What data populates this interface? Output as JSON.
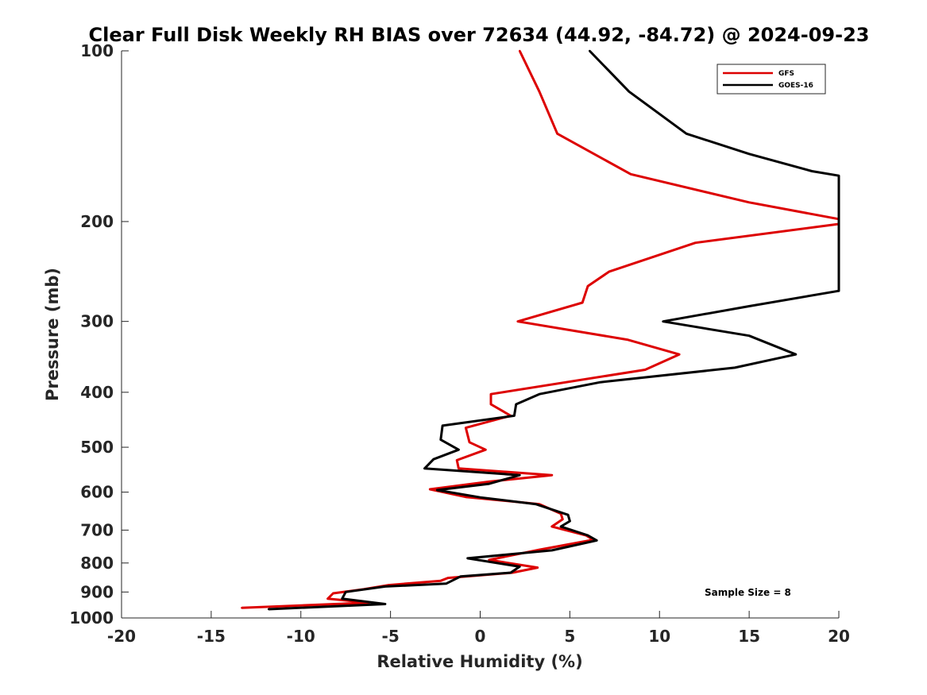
{
  "chart_data": {
    "type": "line",
    "title": "Clear Full Disk Weekly RH BIAS over 72634 (44.92, -84.72) @ 2024-09-23",
    "xlabel": "Relative Humidity (%)",
    "ylabel": "Pressure (mb)",
    "xlim": [
      -20,
      20
    ],
    "ylim": [
      100,
      1000
    ],
    "yscale": "log",
    "x_ticks": [
      -20,
      -15,
      -10,
      -5,
      0,
      5,
      10,
      15,
      20
    ],
    "y_ticks": [
      100,
      200,
      300,
      400,
      500,
      600,
      700,
      800,
      900,
      1000
    ],
    "legend_position": "top-right",
    "annotation": "Sample Size = 8",
    "series": [
      {
        "name": "GFS",
        "color": "#dd0000",
        "points": [
          [
            2.2,
            100
          ],
          [
            3.3,
            118
          ],
          [
            4.3,
            140
          ],
          [
            8.4,
            165
          ],
          [
            15,
            185
          ],
          [
            20,
            198
          ],
          [
            20,
            202
          ],
          [
            12,
            218
          ],
          [
            7.2,
            245
          ],
          [
            6,
            260
          ],
          [
            5.7,
            278
          ],
          [
            2.1,
            300
          ],
          [
            8.2,
            323
          ],
          [
            11.1,
            343
          ],
          [
            9.2,
            365
          ],
          [
            0.6,
            403
          ],
          [
            0.6,
            420
          ],
          [
            1.7,
            440
          ],
          [
            -0.8,
            462
          ],
          [
            -0.6,
            490
          ],
          [
            0.3,
            505
          ],
          [
            -1.3,
            527
          ],
          [
            -1.2,
            545
          ],
          [
            4,
            560
          ],
          [
            0.5,
            575
          ],
          [
            -2.8,
            593
          ],
          [
            -0.8,
            612
          ],
          [
            3.3,
            630
          ],
          [
            4.5,
            655
          ],
          [
            4.6,
            670
          ],
          [
            4,
            690
          ],
          [
            5.9,
            715
          ],
          [
            6.3,
            728
          ],
          [
            3.3,
            758
          ],
          [
            0.5,
            790
          ],
          [
            3.2,
            815
          ],
          [
            1.8,
            832
          ],
          [
            -1.8,
            850
          ],
          [
            -2.2,
            860
          ],
          [
            -5.1,
            875
          ],
          [
            -6.5,
            890
          ],
          [
            -8.2,
            905
          ],
          [
            -8.5,
            925
          ],
          [
            -6.2,
            940
          ],
          [
            -13.3,
            960
          ]
        ]
      },
      {
        "name": "GOES-16",
        "color": "#000000",
        "points": [
          [
            6.1,
            100
          ],
          [
            8.3,
            118
          ],
          [
            11.5,
            140
          ],
          [
            15,
            152
          ],
          [
            18.5,
            163
          ],
          [
            20,
            166
          ],
          [
            20,
            265
          ],
          [
            15,
            282
          ],
          [
            10.2,
            300
          ],
          [
            15,
            318
          ],
          [
            17.6,
            343
          ],
          [
            14.2,
            362
          ],
          [
            6.7,
            384
          ],
          [
            3.3,
            403
          ],
          [
            2,
            420
          ],
          [
            1.9,
            440
          ],
          [
            -2.1,
            458
          ],
          [
            -2.2,
            485
          ],
          [
            -1.2,
            505
          ],
          [
            -2.6,
            525
          ],
          [
            -3.1,
            545
          ],
          [
            2.2,
            560
          ],
          [
            0.5,
            580
          ],
          [
            -2.4,
            595
          ],
          [
            0,
            613
          ],
          [
            3.1,
            630
          ],
          [
            4.9,
            658
          ],
          [
            5,
            675
          ],
          [
            4.5,
            690
          ],
          [
            6,
            715
          ],
          [
            6.5,
            730
          ],
          [
            4,
            760
          ],
          [
            -0.7,
            785
          ],
          [
            2.2,
            812
          ],
          [
            1.7,
            832
          ],
          [
            -1.1,
            845
          ],
          [
            -1.9,
            870
          ],
          [
            -5.3,
            880
          ],
          [
            -7.5,
            900
          ],
          [
            -7.7,
            925
          ],
          [
            -5.3,
            945
          ],
          [
            -11.8,
            965
          ]
        ]
      }
    ]
  }
}
